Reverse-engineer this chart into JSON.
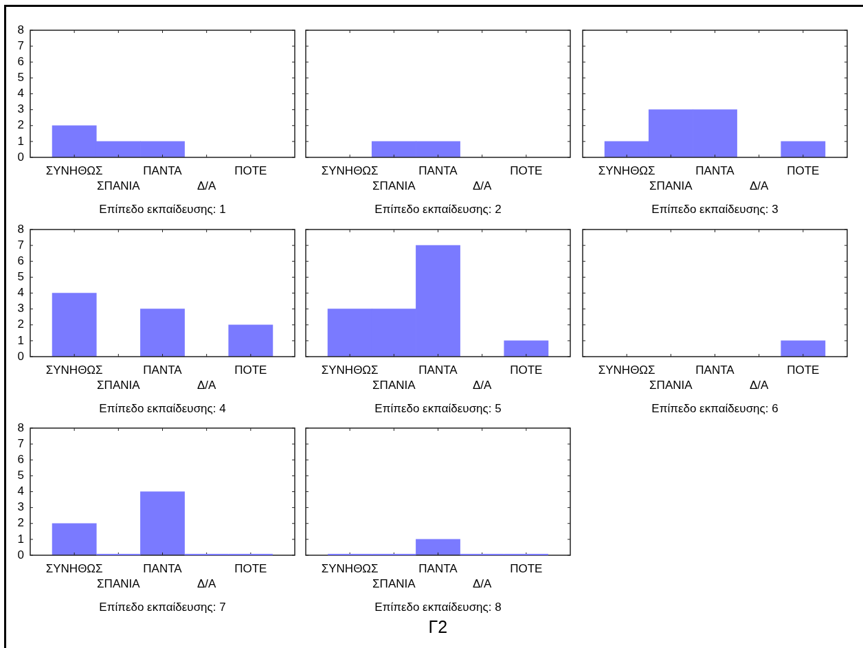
{
  "chart_data": [
    {
      "type": "bar",
      "xlabel": "Επίπεδο εκπαίδευσης: 1",
      "categories": [
        "ΣΥΝΗΘΩΣ",
        "ΣΠΑΝΙΑ",
        "ΠΑΝΤΑ",
        "Δ/Α",
        "ΠΟΤΕ"
      ],
      "values": [
        2,
        1,
        1,
        null,
        null
      ],
      "color": "#7a7aff",
      "ylim": [
        0,
        8
      ],
      "yticks": [
        0,
        1,
        2,
        3,
        4,
        5,
        6,
        7,
        8
      ]
    },
    {
      "type": "bar",
      "xlabel": "Επίπεδο εκπαίδευσης: 2",
      "categories": [
        "ΣΥΝΗΘΩΣ",
        "ΣΠΑΝΙΑ",
        "ΠΑΝΤΑ",
        "Δ/Α",
        "ΠΟΤΕ"
      ],
      "values": [
        null,
        1,
        1,
        null,
        null
      ],
      "color": "#7a7aff",
      "ylim": [
        0,
        8
      ],
      "yticks": [
        0,
        1,
        2,
        3,
        4,
        5,
        6,
        7,
        8
      ],
      "tick_labels": "x"
    },
    {
      "type": "bar",
      "xlabel": "Επίπεδο εκπαίδευσης: 3",
      "categories": [
        "ΣΥΝΗΘΩΣ",
        "ΣΠΑΝΙΑ",
        "ΠΑΝΤΑ",
        "Δ/Α",
        "ΠΟΤΕ"
      ],
      "values": [
        1,
        3,
        3,
        null,
        1
      ],
      "color": "#7a7aff",
      "ylim": [
        0,
        8
      ],
      "yticks": [
        0,
        1,
        2,
        3,
        4,
        5,
        6,
        7,
        8
      ],
      "tick_labels": "x"
    },
    {
      "type": "bar",
      "xlabel": "Επίπεδο εκπαίδευσης: 4",
      "categories": [
        "ΣΥΝΗΘΩΣ",
        "ΣΠΑΝΙΑ",
        "ΠΑΝΤΑ",
        "Δ/Α",
        "ΠΟΤΕ"
      ],
      "values": [
        4,
        null,
        3,
        null,
        2
      ],
      "color": "#7a7aff",
      "ylim": [
        0,
        8
      ],
      "yticks": [
        0,
        1,
        2,
        3,
        4,
        5,
        6,
        7,
        8
      ]
    },
    {
      "type": "bar",
      "xlabel": "Επίπεδο εκπαίδευσης: 5",
      "categories": [
        "ΣΥΝΗΘΩΣ",
        "ΣΠΑΝΙΑ",
        "ΠΑΝΤΑ",
        "Δ/Α",
        "ΠΟΤΕ"
      ],
      "values": [
        3,
        3,
        7,
        null,
        1
      ],
      "color": "#7a7aff",
      "ylim": [
        0,
        8
      ],
      "yticks": [
        0,
        1,
        2,
        3,
        4,
        5,
        6,
        7,
        8
      ],
      "tick_labels": "x"
    },
    {
      "type": "bar",
      "xlabel": "Επίπεδο εκπαίδευσης: 6",
      "categories": [
        "ΣΥΝΗΘΩΣ",
        "ΣΠΑΝΙΑ",
        "ΠΑΝΤΑ",
        "Δ/Α",
        "ΠΟΤΕ"
      ],
      "values": [
        null,
        null,
        null,
        null,
        1
      ],
      "color": "#7a7aff",
      "ylim": [
        0,
        8
      ],
      "yticks": [
        0,
        1,
        2,
        3,
        4,
        5,
        6,
        7,
        8
      ],
      "tick_labels": "x"
    },
    {
      "type": "bar",
      "xlabel": "Επίπεδο εκπαίδευσης: 7",
      "categories": [
        "ΣΥΝΗΘΩΣ",
        "ΣΠΑΝΙΑ",
        "ΠΑΝΤΑ",
        "Δ/Α",
        "ΠΟΤΕ"
      ],
      "values": [
        2,
        0,
        4,
        0,
        0
      ],
      "color": "#7a7aff",
      "ylim": [
        0,
        8
      ],
      "yticks": [
        0,
        1,
        2,
        3,
        4,
        5,
        6,
        7,
        8
      ]
    },
    {
      "type": "bar",
      "xlabel": "Επίπεδο εκπαίδευσης: 8",
      "categories": [
        "ΣΥΝΗΘΩΣ",
        "ΣΠΑΝΙΑ",
        "ΠΑΝΤΑ",
        "Δ/Α",
        "ΠΟΤΕ"
      ],
      "values": [
        0,
        0,
        1,
        0,
        0
      ],
      "color": "#7a7aff",
      "ylim": [
        0,
        8
      ],
      "yticks": [
        0,
        1,
        2,
        3,
        4,
        5,
        6,
        7,
        8
      ],
      "tick_labels": "x",
      "annotations": [
        "Γ2"
      ]
    }
  ]
}
